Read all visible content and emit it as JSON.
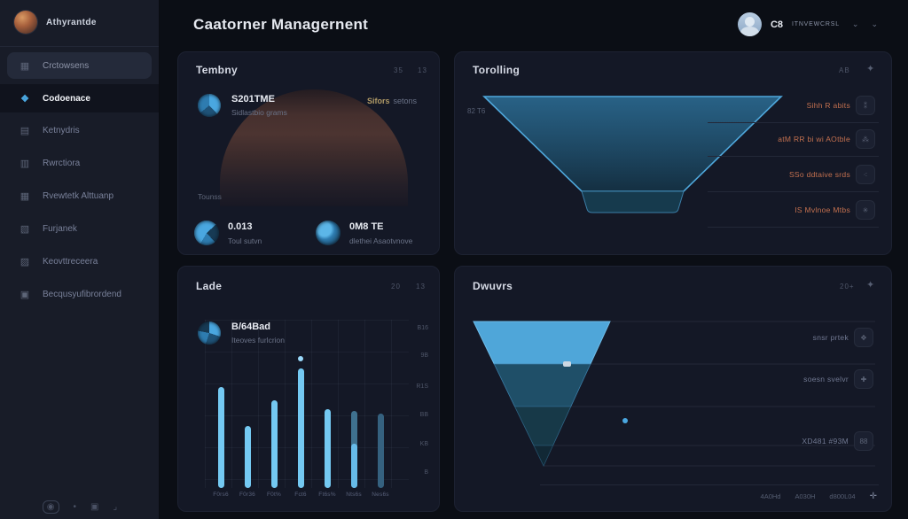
{
  "colors": {
    "accent_blue": "#4aa7e0",
    "bar_light": "#74c9f2",
    "bar_muted": "#35617f",
    "bar_split_top": "#3f718f",
    "orange_row_text": "#c3704f",
    "tan_note": "#b09a66",
    "card_bg": "#141826",
    "sidebar_bg": "#181c28"
  },
  "sidebar": {
    "brand": "Athyrantde",
    "search_item": {
      "label": "Crctowsens",
      "glyph": "▦"
    },
    "active_item": {
      "label": "Codoenace",
      "glyph": "❖"
    },
    "items": [
      {
        "label": "Ketnydris",
        "glyph": "▤"
      },
      {
        "label": "Rwrctiora",
        "glyph": "▥"
      },
      {
        "label": "Rvewtetk Alttuanp",
        "glyph": "▦"
      },
      {
        "label": "Furjanek",
        "glyph": "▧"
      },
      {
        "label": "Keovttreceera",
        "glyph": "▨"
      },
      {
        "label": "Becqusyufibrordend",
        "glyph": "▣"
      }
    ],
    "footer_glyphs": [
      "◉",
      "•",
      "▣",
      "⌟"
    ]
  },
  "header": {
    "title": "Caatorner Managernent",
    "user": {
      "id": "C8",
      "name": "Itnvewcrsl",
      "chevron": "⌄",
      "chevron2": "⌄"
    }
  },
  "panel_summary": {
    "title": "Tembny",
    "badges": [
      "35",
      "13"
    ],
    "lead_value": "S201TME",
    "lead_label": "Sidlastbio grams",
    "note_em": "Sifors",
    "note_rest": "setons",
    "caption": "Tounss",
    "stats": [
      {
        "value": "0.013",
        "label": "Toul sutvn"
      },
      {
        "value": "0M8 TE",
        "label": "dlethei Asaotvnove"
      }
    ]
  },
  "panel_funnel_top": {
    "title": "Torolling",
    "badge": "AB",
    "sparkle": "✦",
    "axis_label": "82 T6",
    "rows": [
      {
        "label": "Sihh R abits",
        "icon_glyph": "⁑"
      },
      {
        "label": "atM RR bi wi AOtble",
        "icon_glyph": "⁂"
      },
      {
        "label": "SSo ddtaive srds",
        "icon_glyph": "⁖"
      },
      {
        "label": "IS Mvlnoe Mtbs",
        "icon_glyph": "✳"
      }
    ]
  },
  "panel_bars": {
    "title": "Lade",
    "badges": [
      "20",
      "13"
    ],
    "lead_value": "B/64Bad",
    "lead_label": "Iteoves furlcrion"
  },
  "panel_funnel_btm": {
    "title": "Dwuvrs",
    "badge": "20+",
    "sparkle": "✦",
    "rows": [
      {
        "label": "snsr prtek",
        "icon_glyph": "✥"
      },
      {
        "label": "soesn svelvr",
        "icon_glyph": "✚"
      },
      {
        "label": "XD481 #93M",
        "icon_glyph": "88"
      }
    ],
    "footer_items": [
      "4A0Hd",
      "A030H",
      "d800L04"
    ],
    "footer_plus": "✛"
  },
  "chart_data": [
    {
      "type": "bar",
      "title": "Lade",
      "categories": [
        "F0rs6",
        "F0r36",
        "F0t%",
        "Fct6",
        "Ft6s%",
        "Nts6s",
        "Nes6s"
      ],
      "values": [
        60,
        37,
        52,
        71,
        47,
        46,
        44
      ],
      "ylim": [
        0,
        100
      ],
      "ylabels_right": [
        "B16",
        "9B",
        "R1S",
        "BB",
        "KB",
        "B"
      ],
      "grid": true,
      "legend": false,
      "bar_styles": [
        {
          "color": "#74c9f2"
        },
        {
          "color": "#74c9f2"
        },
        {
          "color": "#74c9f2"
        },
        {
          "color": "#74c9f2",
          "dot": true
        },
        {
          "color": "#74c9f2"
        },
        {
          "color": "#3f718f",
          "lower_color": "#67bbe9",
          "split": 0.42
        },
        {
          "color": "#35617f"
        }
      ]
    },
    {
      "type": "funnel",
      "title": "Torolling",
      "orientation": "inverted-trapezoid",
      "axis_label": "82 T6",
      "stages": [
        {
          "label": "Sihh R abits",
          "width_rel": 1.0
        },
        {
          "label": "atM RR bi wi AOtble",
          "width_rel": 0.74
        },
        {
          "label": "SSo ddtaive srds",
          "width_rel": 0.48
        },
        {
          "label": "IS Mvlnoe Mtbs",
          "width_rel": 0.32
        }
      ]
    },
    {
      "type": "funnel",
      "title": "Dwuvrs",
      "orientation": "inverted-triangle",
      "stages": [
        {
          "label": "snsr prtek",
          "width_rel": 1.0
        },
        {
          "label": "soesn svelvr",
          "width_rel": 0.66
        },
        {
          "label": "XD481 #93M",
          "width_rel": 0.38
        }
      ]
    }
  ]
}
